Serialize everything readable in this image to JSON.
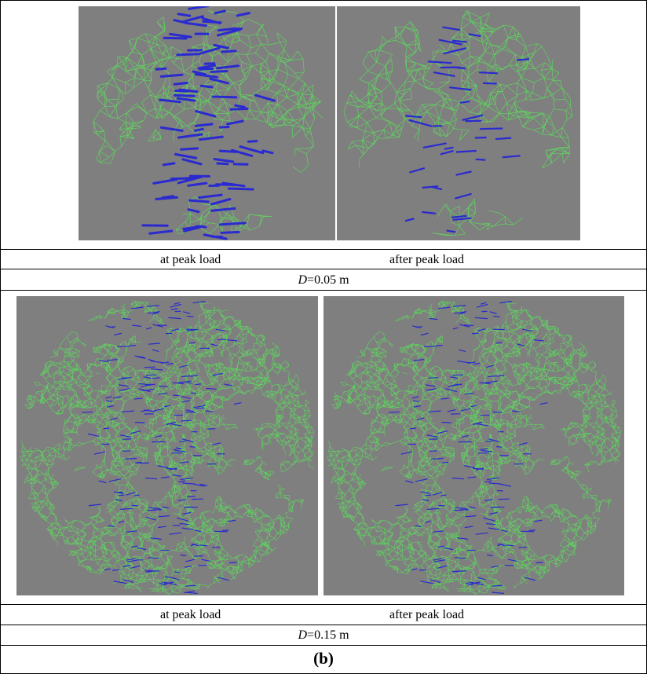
{
  "rows": [
    {
      "panels": [
        {
          "caption": "at peak load"
        },
        {
          "caption": "after peak load"
        }
      ],
      "diameter_symbol": "D",
      "diameter_value": "=0.05 m"
    },
    {
      "panels": [
        {
          "caption": "at peak load"
        },
        {
          "caption": "after peak load"
        }
      ],
      "diameter_symbol": "D",
      "diameter_value": "=0.15 m"
    }
  ],
  "subfigure_label": "(b)",
  "colors": {
    "background": "#7f7f7f",
    "mesh": "#5fd35f",
    "cracks": "#2a2ad0"
  }
}
